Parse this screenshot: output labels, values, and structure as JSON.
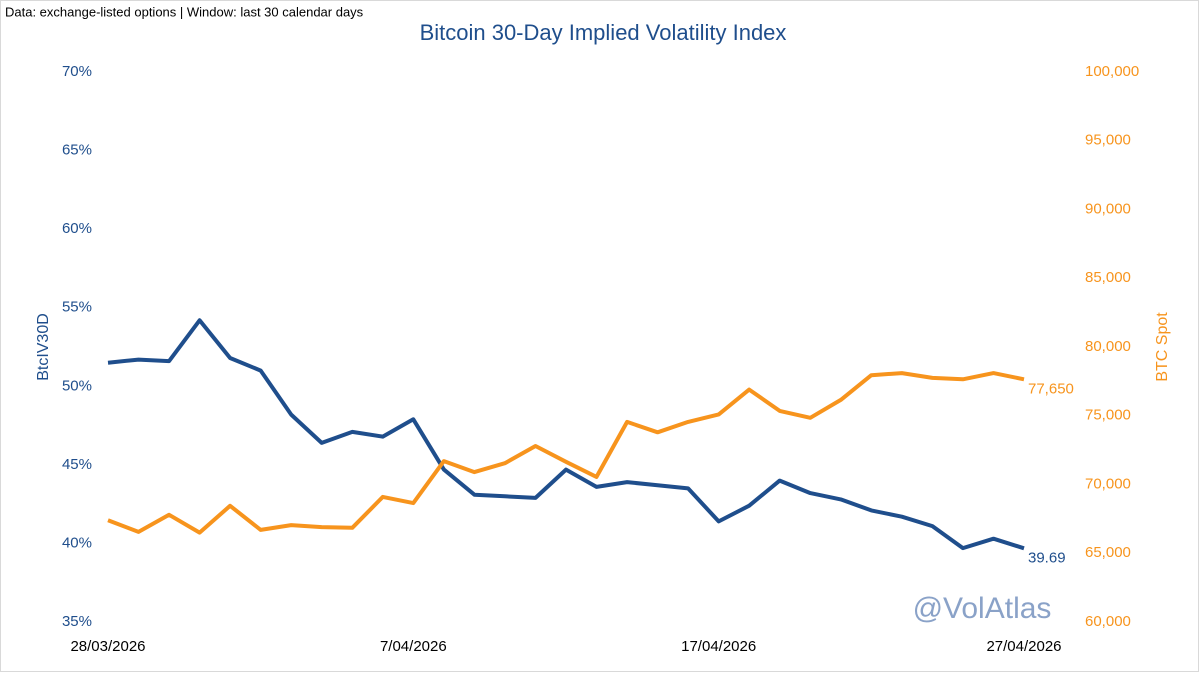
{
  "chart_data": {
    "type": "line",
    "note": "Data: exchange-listed options | Window: last 30 calendar days",
    "title": "Bitcoin 30-Day Implied Volatility Index",
    "y_label": "BtcIV30D",
    "y2_label": "BTC Spot",
    "watermark": "@VolAtlas",
    "x": [
      "28/03/2026",
      "29/03/2026",
      "30/03/2026",
      "31/03/2026",
      "1/04/2026",
      "2/04/2026",
      "3/04/2026",
      "4/04/2026",
      "5/04/2026",
      "6/04/2026",
      "7/04/2026",
      "8/04/2026",
      "9/04/2026",
      "10/04/2026",
      "11/04/2026",
      "12/04/2026",
      "13/04/2026",
      "14/04/2026",
      "15/04/2026",
      "16/04/2026",
      "17/04/2026",
      "18/04/2026",
      "19/04/2026",
      "20/04/2026",
      "21/04/2026",
      "22/04/2026",
      "23/04/2026",
      "24/04/2026",
      "25/04/2026",
      "26/04/2026",
      "27/04/2026"
    ],
    "xticks": [
      "28/03/2026",
      "7/04/2026",
      "17/04/2026",
      "27/04/2026"
    ],
    "ylim": [
      35,
      70
    ],
    "yticks": [
      {
        "value": 35,
        "label": "35%"
      },
      {
        "value": 40,
        "label": "40%"
      },
      {
        "value": 45,
        "label": "45%"
      },
      {
        "value": 50,
        "label": "50%"
      },
      {
        "value": 55,
        "label": "55%"
      },
      {
        "value": 60,
        "label": "60%"
      },
      {
        "value": 65,
        "label": "65%"
      },
      {
        "value": 70,
        "label": "70%"
      }
    ],
    "y2lim": [
      60000,
      100000
    ],
    "y2ticks": [
      {
        "value": 60000,
        "label": "60,000"
      },
      {
        "value": 65000,
        "label": "65,000"
      },
      {
        "value": 70000,
        "label": "70,000"
      },
      {
        "value": 75000,
        "label": "75,000"
      },
      {
        "value": 80000,
        "label": "80,000"
      },
      {
        "value": 85000,
        "label": "85,000"
      },
      {
        "value": 90000,
        "label": "90,000"
      },
      {
        "value": 95000,
        "label": "95,000"
      },
      {
        "value": 100000,
        "label": "100,000"
      }
    ],
    "grid": false,
    "series": [
      {
        "name": "BtcIV30D",
        "color": "#1f4e8c",
        "axis": "y",
        "values": [
          51.5,
          51.7,
          51.6,
          54.2,
          51.8,
          51.0,
          48.2,
          46.4,
          47.1,
          46.8,
          47.9,
          44.7,
          43.1,
          43.0,
          42.9,
          44.7,
          43.6,
          43.9,
          43.7,
          43.5,
          41.4,
          42.4,
          44.0,
          43.2,
          42.8,
          42.1,
          41.7,
          41.1,
          39.7,
          40.3,
          39.69
        ],
        "value_labels": [
          null,
          null,
          null,
          null,
          null,
          null,
          null,
          null,
          null,
          null,
          null,
          null,
          null,
          null,
          null,
          null,
          null,
          null,
          null,
          null,
          null,
          null,
          null,
          null,
          null,
          null,
          null,
          null,
          null,
          null,
          "39.69"
        ]
      },
      {
        "name": "BTC Spot",
        "color": "#f7941d",
        "axis": "y2",
        "values": [
          67400,
          66550,
          67800,
          66500,
          68450,
          66700,
          67050,
          66900,
          66850,
          69100,
          68650,
          71700,
          70900,
          71550,
          72800,
          71650,
          70550,
          74550,
          73800,
          74550,
          75100,
          76900,
          75350,
          74850,
          76150,
          77950,
          78100,
          77750,
          77650,
          78100,
          77650
        ],
        "value_labels": [
          null,
          null,
          null,
          null,
          null,
          null,
          null,
          null,
          null,
          null,
          null,
          null,
          null,
          null,
          null,
          null,
          null,
          null,
          null,
          null,
          null,
          null,
          null,
          null,
          null,
          null,
          null,
          null,
          null,
          null,
          "77,650"
        ]
      }
    ]
  }
}
